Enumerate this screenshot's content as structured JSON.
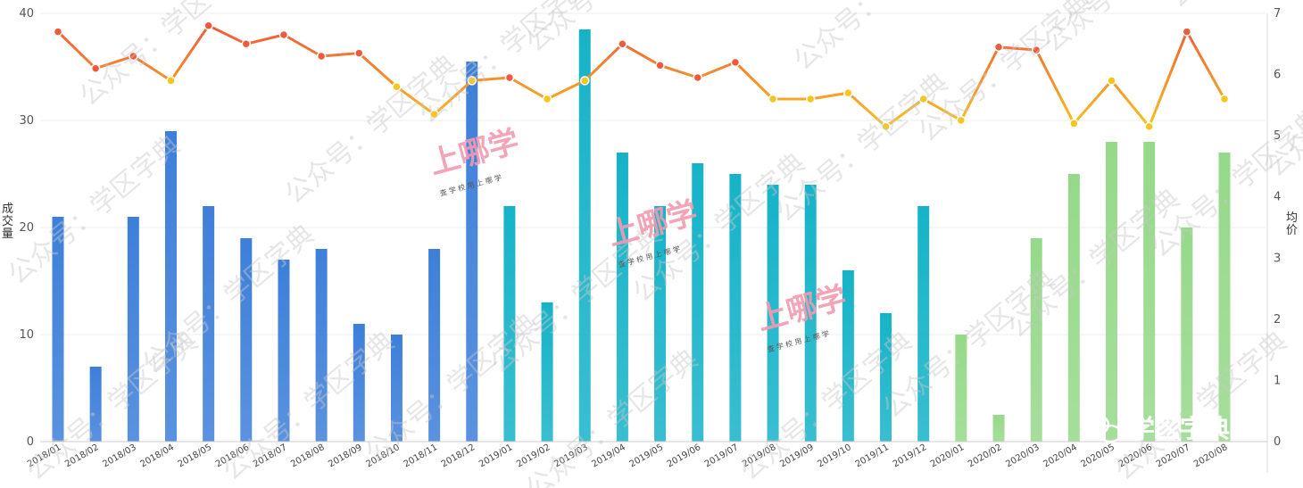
{
  "chart_data": {
    "type": "bar+line",
    "categories": [
      "2018/01",
      "2018/02",
      "2018/03",
      "2018/04",
      "2018/05",
      "2018/06",
      "2018/07",
      "2018/08",
      "2018/09",
      "2018/10",
      "2018/11",
      "2018/12",
      "2019/01",
      "2019/02",
      "2019/03",
      "2019/04",
      "2019/05",
      "2019/06",
      "2019/07",
      "2019/08",
      "2019/09",
      "2019/10",
      "2019/11",
      "2019/12",
      "2020/01",
      "2020/02",
      "2020/03",
      "2020/04",
      "2020/05",
      "2020/06",
      "2020/07",
      "2020/08"
    ],
    "series": [
      {
        "axis": "left",
        "kind": "bar",
        "values": [
          21,
          7,
          21,
          29,
          22,
          19,
          17,
          18,
          11,
          10,
          18,
          35.5,
          22,
          13,
          38.5,
          27,
          22,
          26,
          25,
          24,
          24,
          16,
          12,
          22,
          10,
          2.5,
          19,
          25,
          28,
          28,
          20,
          27
        ]
      },
      {
        "axis": "right",
        "kind": "line",
        "values": [
          6.7,
          6.1,
          6.3,
          5.9,
          6.8,
          6.5,
          6.65,
          6.3,
          6.35,
          5.8,
          5.35,
          5.9,
          5.95,
          5.6,
          5.9,
          6.5,
          6.15,
          5.95,
          6.2,
          5.6,
          5.6,
          5.7,
          5.15,
          5.6,
          5.25,
          6.45,
          6.4,
          5.2,
          5.9,
          5.15,
          6.7,
          5.6
        ]
      }
    ],
    "ylabel_left": "成交量",
    "ylabel_right": "均价",
    "ylim_left": [
      0,
      40
    ],
    "ylim_right": [
      0,
      7
    ],
    "yticks_left": [
      0,
      10,
      20,
      30,
      40
    ],
    "yticks_right": [
      0,
      1,
      2,
      3,
      4,
      5,
      6,
      7
    ],
    "grid": true,
    "colors": {
      "bars_2018": "#3d7fd9",
      "bars_2019": "#16b3c8",
      "bars_2020": "#96d98a",
      "line_high": "#f05a3c",
      "line_low": "#f7c51e"
    }
  },
  "watermarks": {
    "repeated": "公众号：学区字典",
    "stamp_title": "上哪学",
    "stamp_sub": "查 学 校   用 上 哪 学",
    "brand": "学区字典"
  }
}
